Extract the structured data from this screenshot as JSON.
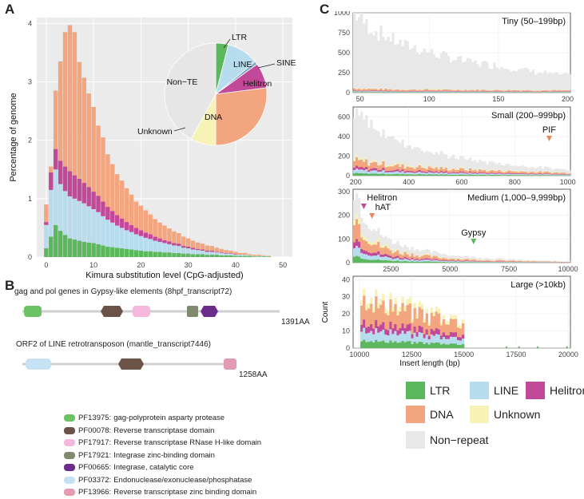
{
  "panels": {
    "a": "A",
    "b": "B",
    "c": "C"
  },
  "colors": {
    "LTR": "#5cb85c",
    "LINE": "#b7dcee",
    "Helitron": "#c2489a",
    "DNA": "#f2a57e",
    "Unknown": "#f7f2b6",
    "NonRepeat": "#e8e8e8",
    "NonTE": "#e6e6e6"
  },
  "chart_data": [
    {
      "id": "A",
      "type": "bar",
      "stacked": true,
      "ylabel": "Percentage of genome",
      "xlabel": "Kimura substitution level (CpG-adjusted)",
      "ylim": [
        0,
        4
      ],
      "xlim": [
        0,
        50
      ],
      "xticks": [
        0,
        10,
        20,
        30,
        40,
        50
      ],
      "yticks": [
        0,
        1,
        2,
        3,
        4
      ],
      "x": [
        0,
        1,
        2,
        3,
        4,
        5,
        6,
        7,
        8,
        9,
        10,
        11,
        12,
        13,
        14,
        15,
        16,
        17,
        18,
        19,
        20,
        21,
        22,
        23,
        24,
        25,
        26,
        27,
        28,
        29,
        30,
        31,
        32,
        33,
        34,
        35,
        36,
        37,
        38,
        39,
        40,
        41,
        42,
        43,
        44,
        45,
        46,
        47,
        48,
        49
      ],
      "series": [
        {
          "name": "LTR",
          "values": [
            0.15,
            0.35,
            0.55,
            0.45,
            0.38,
            0.32,
            0.3,
            0.28,
            0.26,
            0.25,
            0.24,
            0.22,
            0.2,
            0.18,
            0.17,
            0.16,
            0.15,
            0.14,
            0.13,
            0.12,
            0.11,
            0.1,
            0.1,
            0.09,
            0.09,
            0.08,
            0.08,
            0.07,
            0.07,
            0.06,
            0.06,
            0.05,
            0.05,
            0.05,
            0.04,
            0.04,
            0.04,
            0.03,
            0.03,
            0.03,
            0.02,
            0.02,
            0.02,
            0.02,
            0.01,
            0.01,
            0.01,
            0.01,
            0,
            0
          ]
        },
        {
          "name": "LINE",
          "values": [
            0.4,
            0.8,
            0.95,
            0.8,
            0.75,
            0.72,
            0.7,
            0.68,
            0.66,
            0.62,
            0.58,
            0.55,
            0.5,
            0.46,
            0.42,
            0.38,
            0.35,
            0.32,
            0.3,
            0.27,
            0.25,
            0.23,
            0.21,
            0.19,
            0.17,
            0.16,
            0.14,
            0.13,
            0.12,
            0.1,
            0.09,
            0.08,
            0.07,
            0.06,
            0.05,
            0.05,
            0.04,
            0.04,
            0.03,
            0.03,
            0.02,
            0.02,
            0.02,
            0.01,
            0.01,
            0.01,
            0.01,
            0,
            0,
            0
          ]
        },
        {
          "name": "Helitron",
          "values": [
            0.05,
            0.3,
            0.35,
            0.4,
            0.42,
            0.43,
            0.4,
            0.38,
            0.35,
            0.33,
            0.3,
            0.28,
            0.25,
            0.22,
            0.2,
            0.18,
            0.16,
            0.14,
            0.12,
            0.11,
            0.1,
            0.09,
            0.08,
            0.07,
            0.06,
            0.05,
            0.05,
            0.04,
            0.04,
            0.03,
            0.03,
            0.03,
            0.02,
            0.02,
            0.02,
            0.02,
            0.01,
            0.01,
            0.01,
            0.01,
            0.01,
            0,
            0,
            0,
            0,
            0,
            0,
            0,
            0,
            0
          ]
        },
        {
          "name": "DNA",
          "values": [
            0.3,
            0.1,
            1.0,
            1.7,
            2.3,
            2.5,
            2.45,
            2.0,
            1.8,
            1.6,
            1.45,
            1.2,
            1.1,
            0.9,
            0.8,
            0.7,
            0.65,
            0.58,
            0.52,
            0.45,
            0.42,
            0.38,
            0.34,
            0.3,
            0.27,
            0.25,
            0.22,
            0.2,
            0.18,
            0.16,
            0.14,
            0.12,
            0.11,
            0.1,
            0.09,
            0.08,
            0.07,
            0.06,
            0.05,
            0.04,
            0.04,
            0.03,
            0.03,
            0.02,
            0.02,
            0.02,
            0.01,
            0.01,
            0,
            0
          ]
        }
      ],
      "inset_pie": {
        "slices": [
          {
            "name": "LTR",
            "value": 4
          },
          {
            "name": "LINE",
            "value": 10
          },
          {
            "name": "SINE",
            "value": 1
          },
          {
            "name": "Helitron",
            "value": 8
          },
          {
            "name": "DNA",
            "value": 27
          },
          {
            "name": "Unknown",
            "value": 8
          },
          {
            "name": "Non-TE",
            "value": 42
          }
        ],
        "labels": {
          "LTR": "LTR",
          "LINE": "LINE",
          "SINE": "SINE",
          "Helitron": "Helitron",
          "DNA": "DNA",
          "Unknown": "Unknown",
          "NonTE": "Non−TE"
        }
      }
    },
    {
      "id": "C-tiny",
      "type": "area",
      "stacked": true,
      "title": "Tiny (50–199bp)",
      "xlim": [
        45,
        202
      ],
      "ylim": [
        0,
        1000
      ],
      "xticks": [
        50,
        100,
        150,
        200
      ],
      "yticks": [
        0,
        250,
        500,
        750,
        1000
      ],
      "nonrepeat_profile": [
        960,
        880,
        820,
        760,
        720,
        680,
        650,
        620,
        590,
        560,
        540,
        520,
        500,
        480,
        460,
        440,
        420,
        400,
        390,
        380,
        360,
        350,
        340,
        330,
        320,
        310,
        300,
        290,
        280,
        270,
        260,
        250,
        240,
        230,
        220,
        210,
        200,
        195,
        190,
        180
      ],
      "te_profile": [
        60,
        55,
        50,
        50,
        48,
        46,
        45,
        44,
        43,
        42,
        41,
        40,
        40,
        40,
        39,
        39,
        38,
        38,
        38,
        37,
        37,
        36,
        36,
        36,
        35,
        35,
        35,
        34,
        34,
        34,
        33,
        33,
        33,
        32,
        32,
        32,
        31,
        31,
        30,
        30
      ]
    },
    {
      "id": "C-small",
      "type": "area",
      "stacked": true,
      "title": "Small (200–999bp)",
      "xlim": [
        190,
        1010
      ],
      "ylim": [
        0,
        700
      ],
      "xticks": [
        200,
        400,
        600,
        800,
        1000
      ],
      "yticks": [
        0,
        200,
        400,
        600
      ],
      "annotation": {
        "label": "PIF",
        "x": 930
      },
      "nonrepeat_profile": [
        480,
        430,
        380,
        340,
        300,
        270,
        240,
        220,
        200,
        180,
        160,
        145,
        130,
        120,
        110,
        100,
        92,
        85,
        78,
        72,
        66,
        60,
        56,
        52,
        48,
        44,
        40,
        36,
        33,
        30
      ],
      "te_profile": [
        170,
        160,
        150,
        140,
        130,
        120,
        110,
        105,
        100,
        95,
        90,
        85,
        80,
        75,
        72,
        70,
        66,
        62,
        58,
        55,
        52,
        50,
        47,
        45,
        42,
        40,
        38,
        35,
        33,
        30
      ]
    },
    {
      "id": "C-medium",
      "type": "area",
      "stacked": true,
      "title": "Medium (1,000–9,999bp)",
      "xlim": [
        900,
        10100
      ],
      "ylim": [
        0,
        310
      ],
      "xticks": [
        2500,
        5000,
        7500,
        10000
      ],
      "yticks": [
        0,
        100,
        200,
        300
      ],
      "annotations": [
        {
          "label": "Helitron",
          "x": 1350
        },
        {
          "label": "hAT",
          "x": 1700
        },
        {
          "label": "Gypsy",
          "x": 6000
        }
      ],
      "nonrepeat_profile": [
        90,
        70,
        55,
        45,
        38,
        33,
        29,
        26,
        23,
        20,
        18,
        16,
        14,
        12,
        11,
        10,
        9,
        8,
        7,
        6,
        6,
        5,
        5,
        4,
        4,
        3,
        3,
        3,
        2,
        2
      ],
      "te_profile": [
        230,
        150,
        110,
        85,
        70,
        58,
        50,
        43,
        38,
        33,
        29,
        26,
        23,
        20,
        18,
        16,
        14,
        13,
        12,
        11,
        10,
        9,
        8,
        7,
        6,
        6,
        5,
        5,
        4,
        4
      ]
    },
    {
      "id": "C-large",
      "type": "area",
      "stacked": true,
      "title": "Large (>10kb)",
      "ylabel": "Count",
      "xlabel": "Insert length (bp)",
      "xlim": [
        9700,
        20100
      ],
      "ylim": [
        0,
        42
      ],
      "xticks": [
        10000,
        12500,
        15000,
        17500,
        20000
      ],
      "yticks": [
        0,
        10,
        20,
        30,
        40
      ],
      "te_profile": [
        38,
        30,
        33,
        28,
        25,
        30,
        22,
        26,
        20,
        24,
        18,
        22,
        17,
        20,
        15,
        18,
        14,
        16,
        12,
        14,
        11,
        13,
        10,
        12,
        9,
        10,
        8,
        9,
        7,
        6
      ]
    }
  ],
  "panelB": {
    "gypsy_title": "gag and pol genes in Gypsy-like elements (8hpf_transcript72)",
    "gypsy_length": "1391AA",
    "line_title": "ORF2 of LINE retrotransposon (mantle_transcript7446)",
    "line_length": "1258AA",
    "legend": [
      {
        "id": "PF13975",
        "desc": "gag-polyprotein asparty protease",
        "color": "#6cc165"
      },
      {
        "id": "PF00078",
        "desc": "Reverse transcriptase domain",
        "color": "#6b5347"
      },
      {
        "id": "PF17917",
        "desc": "Reverse transcriptase RNase H-like domain",
        "color": "#f5b8dc"
      },
      {
        "id": "PF17921",
        "desc": "Integrase zinc-binding domain",
        "color": "#7f8a6e"
      },
      {
        "id": "PF00665",
        "desc": "Integrase, catalytic core",
        "color": "#6b2c8c"
      },
      {
        "id": "PF03372",
        "desc": "Endonuclease/exonuclease/phosphatase",
        "color": "#c6e2f2"
      },
      {
        "id": "PF13966",
        "desc": "Reverse transcriptase zinc binding domain",
        "color": "#e49bb0"
      }
    ]
  },
  "legendC": [
    {
      "name": "LTR",
      "color": "#5cb85c"
    },
    {
      "name": "LINE",
      "color": "#b7dcee"
    },
    {
      "name": "Helitron",
      "color": "#c2489a"
    },
    {
      "name": "DNA",
      "color": "#f2a57e"
    },
    {
      "name": "Unknown",
      "color": "#f7f2b6"
    },
    {
      "name": "Non−repeat",
      "color": "#e8e8e8"
    }
  ]
}
